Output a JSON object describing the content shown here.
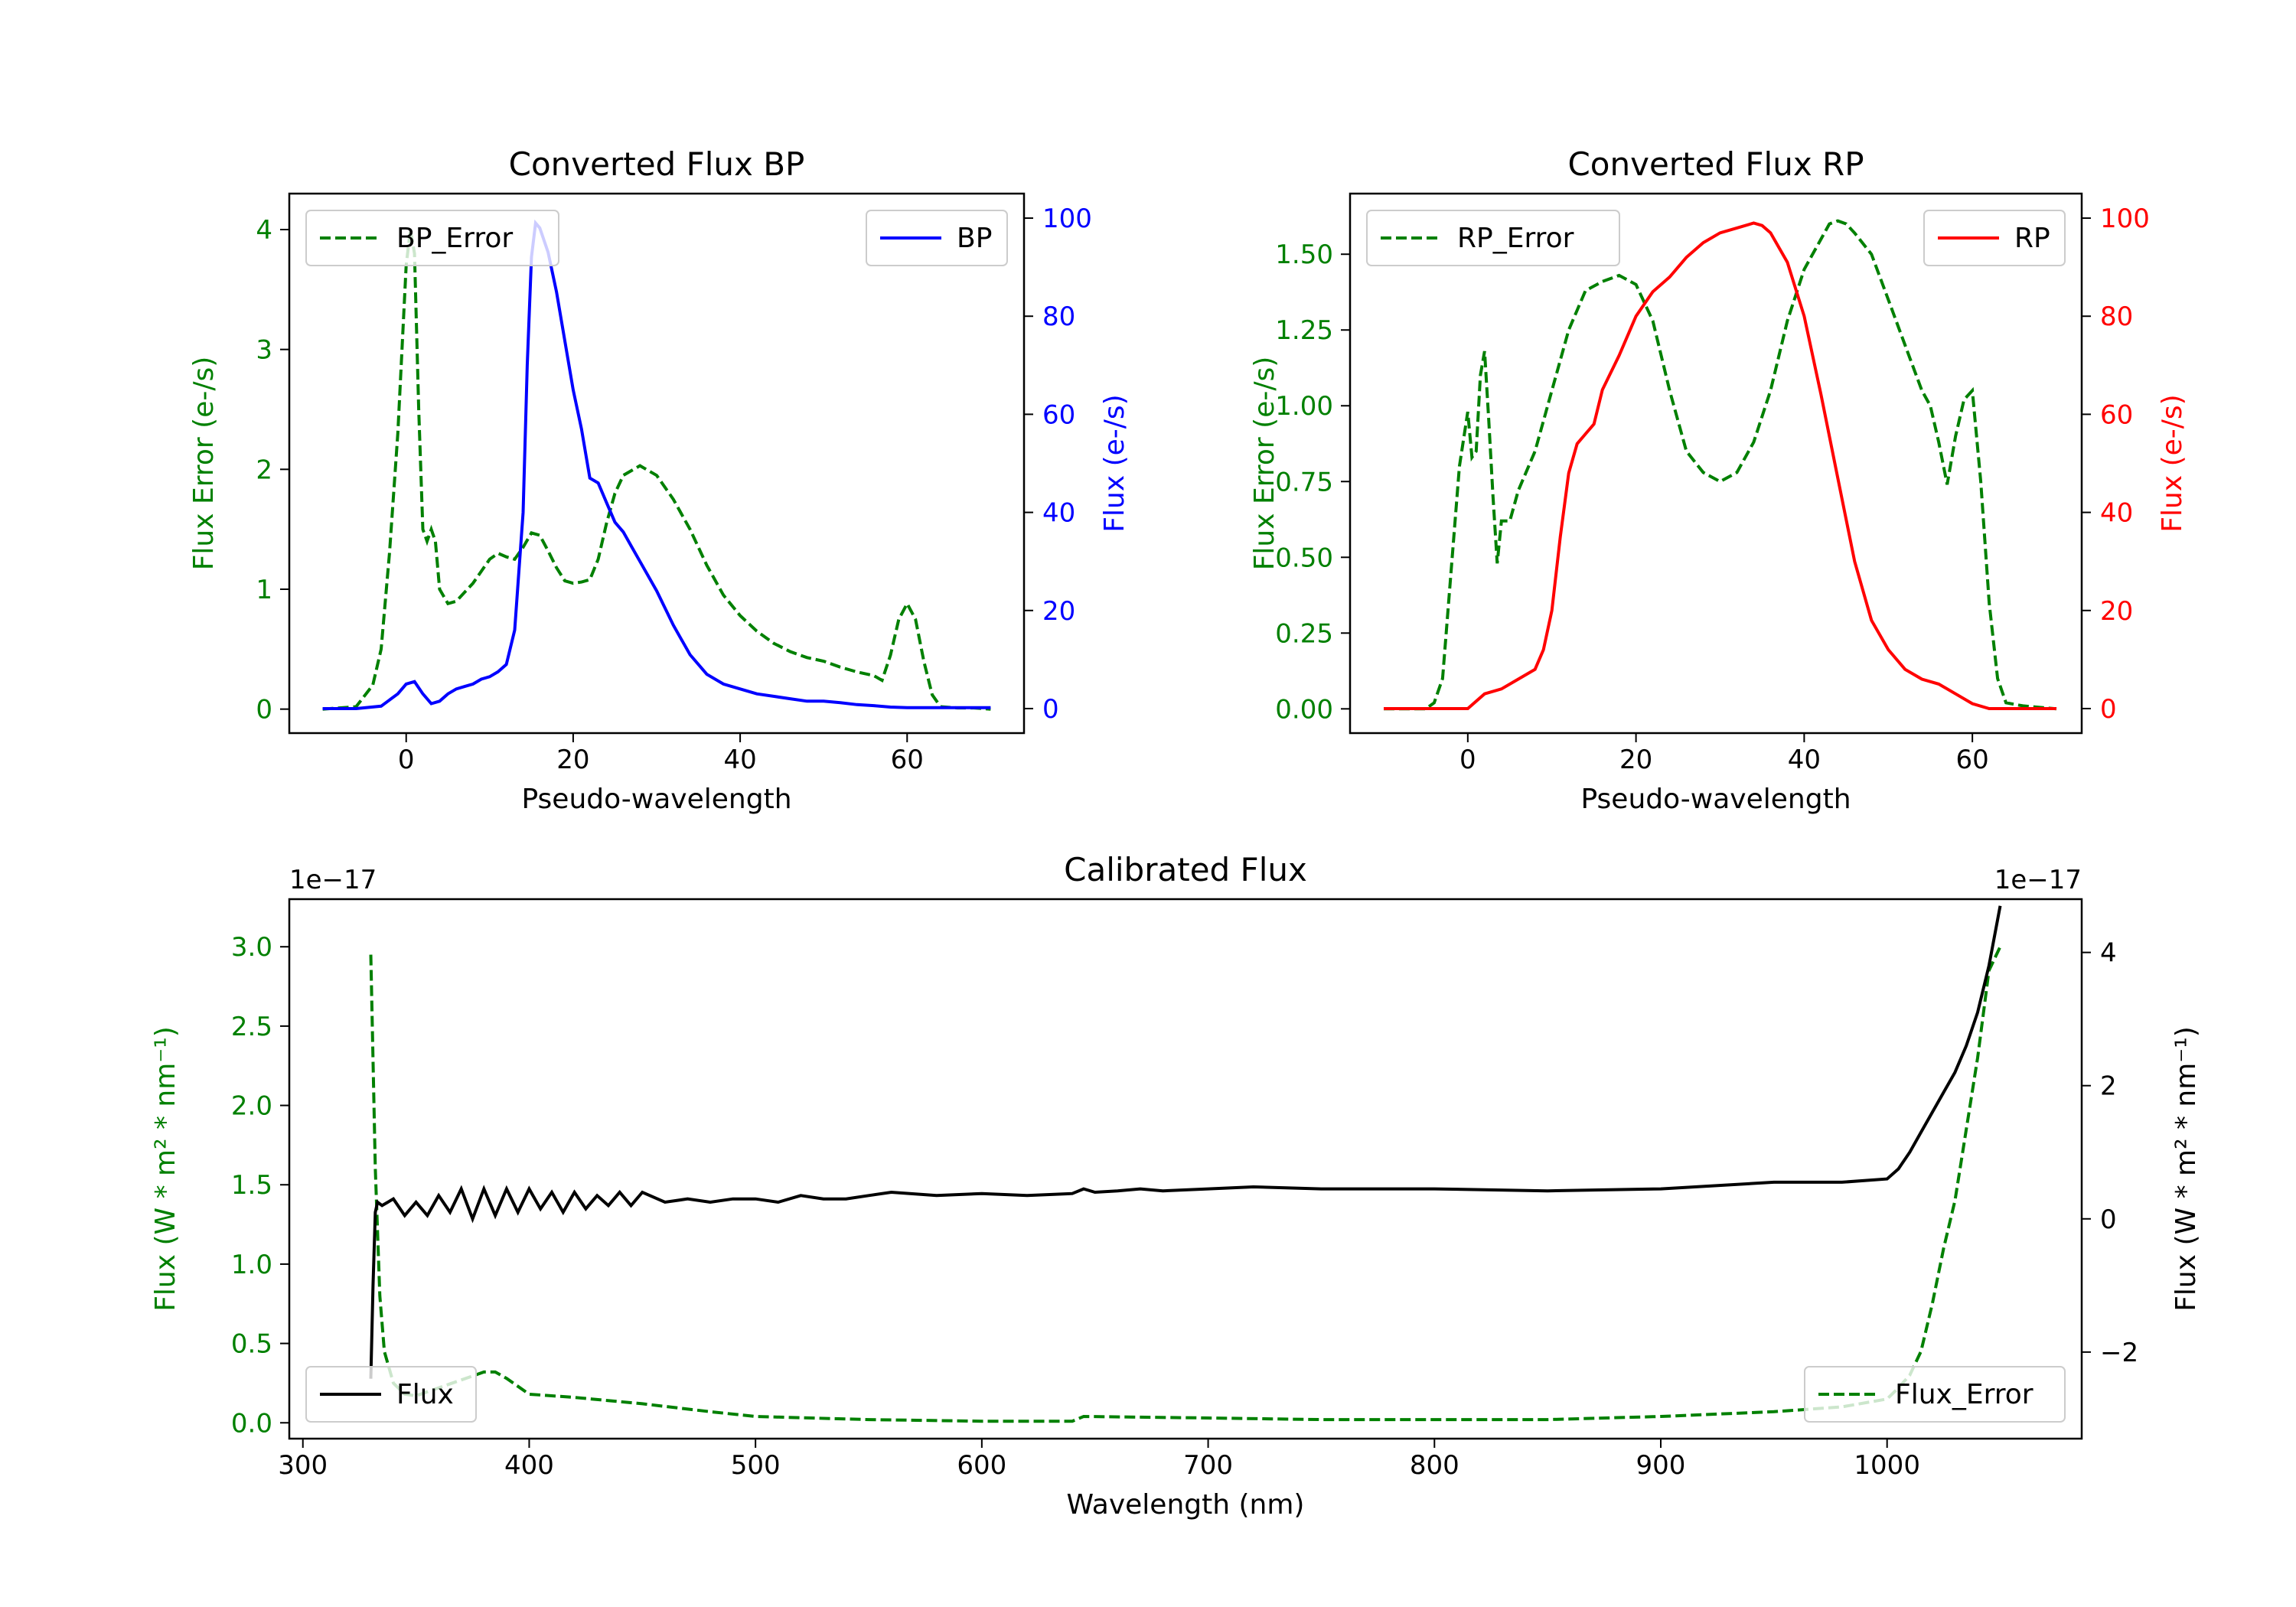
{
  "colors": {
    "error": "#008000",
    "bp": "#0000ff",
    "rp": "#ff0000",
    "flux": "#000000",
    "axis": "#000000"
  },
  "chart_data": [
    {
      "id": "bp",
      "type": "line",
      "title": "Converted Flux BP",
      "xlabel": "Pseudo-wavelength",
      "ylabel_left": "Flux Error (e-/s)",
      "ylabel_right": "Flux (e-/s)",
      "xlim": [
        -14,
        74
      ],
      "ylim_left": [
        -0.2,
        4.3
      ],
      "ylim_right": [
        -5,
        105
      ],
      "xticks": [
        0,
        20,
        40,
        60
      ],
      "yticks_left": [
        0,
        1,
        2,
        3,
        4
      ],
      "yticks_right": [
        0,
        20,
        40,
        60,
        80,
        100
      ],
      "legend_left": "BP_Error",
      "legend_right": "BP",
      "series_error": {
        "name": "BP_Error",
        "x": [
          -10,
          -6,
          -4,
          -3,
          -2,
          -1,
          0,
          0.5,
          1,
          1.5,
          2,
          2.5,
          3,
          3.5,
          4,
          5,
          6,
          8,
          10,
          11,
          12,
          13,
          14,
          15,
          16,
          17,
          18,
          19,
          20,
          21,
          22,
          23,
          24,
          25,
          26,
          28,
          30,
          32,
          34,
          36,
          38,
          40,
          42,
          44,
          46,
          48,
          50,
          52,
          54,
          56,
          57,
          58,
          59,
          60,
          61,
          62,
          63,
          64,
          66,
          68,
          70
        ],
        "y": [
          0,
          0.02,
          0.2,
          0.5,
          1.3,
          2.3,
          3.7,
          4.0,
          3.8,
          2.5,
          1.5,
          1.4,
          1.5,
          1.4,
          1.0,
          0.88,
          0.9,
          1.05,
          1.25,
          1.3,
          1.27,
          1.25,
          1.35,
          1.47,
          1.45,
          1.32,
          1.18,
          1.07,
          1.05,
          1.06,
          1.08,
          1.25,
          1.55,
          1.8,
          1.95,
          2.03,
          1.95,
          1.75,
          1.5,
          1.2,
          0.95,
          0.78,
          0.65,
          0.55,
          0.48,
          0.43,
          0.4,
          0.35,
          0.31,
          0.28,
          0.24,
          0.45,
          0.75,
          0.88,
          0.75,
          0.4,
          0.12,
          0.02,
          0.01,
          0.01,
          0
        ]
      },
      "series_flux": {
        "name": "BP",
        "x": [
          -10,
          -6,
          -3,
          -1,
          0,
          1,
          2,
          3,
          4,
          5,
          6,
          7,
          8,
          9,
          10,
          11,
          12,
          13,
          14,
          14.5,
          15,
          15.5,
          16,
          17,
          18,
          19,
          20,
          21,
          22,
          23,
          24,
          25,
          26,
          27,
          28,
          29,
          30,
          32,
          34,
          36,
          38,
          40,
          42,
          44,
          46,
          48,
          50,
          52,
          54,
          56,
          58,
          60,
          62,
          65,
          70
        ],
        "y": [
          0,
          0,
          0.5,
          3,
          5,
          5.5,
          3,
          1,
          1.5,
          3,
          4,
          4.5,
          5,
          6,
          6.5,
          7.5,
          9,
          16,
          40,
          70,
          92,
          99,
          98,
          93,
          85,
          75,
          65,
          57,
          47,
          46,
          42,
          38,
          36,
          33,
          30,
          27,
          24,
          17,
          11,
          7,
          5,
          4,
          3,
          2.5,
          2,
          1.5,
          1.5,
          1.2,
          0.8,
          0.6,
          0.3,
          0.2,
          0.2,
          0.2,
          0.2
        ]
      }
    },
    {
      "id": "rp",
      "type": "line",
      "title": "Converted Flux RP",
      "xlabel": "Pseudo-wavelength",
      "ylabel_left": "Flux Error (e-/s)",
      "ylabel_right": "Flux (e-/s)",
      "xlim": [
        -14,
        73
      ],
      "ylim_left": [
        -0.08,
        1.7
      ],
      "ylim_right": [
        -5,
        105
      ],
      "xticks": [
        0,
        20,
        40,
        60
      ],
      "yticks_left": [
        "0.00",
        "0.25",
        "0.50",
        "0.75",
        "1.00",
        "1.25",
        "1.50"
      ],
      "yticks_right": [
        0,
        20,
        40,
        60,
        80,
        100
      ],
      "legend_left": "RP_Error",
      "legend_right": "RP",
      "series_error": {
        "name": "RP_Error",
        "x": [
          -10,
          -5,
          -4,
          -3,
          -2,
          -1,
          0,
          0.5,
          1,
          1.5,
          2,
          2.5,
          3,
          3.5,
          4,
          5,
          6,
          8,
          10,
          12,
          14,
          16,
          18,
          20,
          22,
          24,
          26,
          28,
          30,
          32,
          34,
          36,
          38,
          40,
          42,
          43,
          44,
          45,
          46,
          48,
          50,
          52,
          54,
          55,
          56,
          57,
          58,
          59,
          60,
          61,
          62,
          63,
          64,
          66,
          70
        ],
        "y": [
          0,
          0,
          0.02,
          0.1,
          0.45,
          0.8,
          0.98,
          0.83,
          0.85,
          1.1,
          1.18,
          0.95,
          0.7,
          0.48,
          0.62,
          0.62,
          0.72,
          0.85,
          1.05,
          1.25,
          1.38,
          1.41,
          1.43,
          1.4,
          1.28,
          1.05,
          0.85,
          0.78,
          0.75,
          0.78,
          0.88,
          1.05,
          1.28,
          1.45,
          1.55,
          1.6,
          1.61,
          1.6,
          1.57,
          1.5,
          1.35,
          1.2,
          1.05,
          1.0,
          0.88,
          0.74,
          0.9,
          1.02,
          1.05,
          0.75,
          0.35,
          0.1,
          0.02,
          0.01,
          0
        ]
      },
      "series_flux": {
        "name": "RP",
        "x": [
          -10,
          -4,
          -2,
          0,
          2,
          4,
          6,
          8,
          9,
          10,
          11,
          12,
          13,
          14,
          15,
          16,
          18,
          20,
          22,
          24,
          26,
          28,
          30,
          32,
          34,
          35,
          36,
          38,
          40,
          42,
          44,
          46,
          48,
          50,
          52,
          54,
          56,
          58,
          60,
          62,
          65,
          70
        ],
        "y": [
          0,
          0,
          0,
          0,
          3,
          4,
          6,
          8,
          12,
          20,
          35,
          48,
          54,
          56,
          58,
          65,
          72,
          80,
          85,
          88,
          92,
          95,
          97,
          98,
          99,
          98.5,
          97,
          91,
          80,
          64,
          47,
          30,
          18,
          12,
          8,
          6,
          5,
          3,
          1,
          0,
          0,
          0
        ]
      }
    },
    {
      "id": "calibrated",
      "type": "line",
      "title": "Calibrated Flux",
      "xlabel": "Wavelength (nm)",
      "ylabel_left": "Flux (W * m² * nm⁻¹)",
      "ylabel_right": "Flux (W * m² * nm⁻¹)",
      "offset_left": "1e−17",
      "offset_right": "1e−17",
      "xlim": [
        294,
        1086
      ],
      "ylim_left": [
        -0.1,
        3.3
      ],
      "ylim_right": [
        -3.3,
        4.8
      ],
      "xticks": [
        300,
        400,
        500,
        600,
        700,
        800,
        900,
        1000
      ],
      "yticks_left": [
        "0.0",
        "0.5",
        "1.0",
        "1.5",
        "2.0",
        "2.5",
        "3.0"
      ],
      "yticks_right": [
        "−2",
        "0",
        "2",
        "4"
      ],
      "legend_left": "Flux",
      "legend_right": "Flux_Error",
      "series_error": {
        "name": "Flux_Error",
        "x": [
          330,
          332,
          334,
          336,
          340,
          345,
          350,
          360,
          370,
          380,
          385,
          390,
          400,
          420,
          450,
          480,
          500,
          550,
          600,
          640,
          645,
          700,
          750,
          800,
          850,
          900,
          950,
          980,
          1000,
          1005,
          1010,
          1015,
          1020,
          1025,
          1030,
          1035,
          1040,
          1045,
          1050
        ],
        "y": [
          2.95,
          1.6,
          0.8,
          0.45,
          0.25,
          0.18,
          0.17,
          0.22,
          0.27,
          0.32,
          0.32,
          0.28,
          0.18,
          0.16,
          0.12,
          0.07,
          0.04,
          0.02,
          0.01,
          0.01,
          0.04,
          0.03,
          0.02,
          0.02,
          0.02,
          0.04,
          0.07,
          0.1,
          0.15,
          0.22,
          0.3,
          0.45,
          0.75,
          1.1,
          1.4,
          1.85,
          2.3,
          2.85,
          3.0
        ]
      },
      "series_flux": {
        "name": "Flux",
        "x": [
          330,
          331,
          332,
          333,
          335,
          340,
          345,
          350,
          355,
          360,
          365,
          370,
          375,
          380,
          385,
          390,
          395,
          400,
          405,
          410,
          415,
          420,
          425,
          430,
          435,
          440,
          445,
          450,
          460,
          470,
          480,
          490,
          500,
          510,
          520,
          530,
          540,
          550,
          560,
          580,
          600,
          620,
          640,
          645,
          650,
          660,
          670,
          680,
          700,
          720,
          750,
          800,
          850,
          900,
          950,
          980,
          1000,
          1005,
          1010,
          1015,
          1020,
          1025,
          1030,
          1035,
          1040,
          1045,
          1050
        ],
        "y": [
          -2.4,
          -1.0,
          0.1,
          0.25,
          0.2,
          0.3,
          0.05,
          0.25,
          0.05,
          0.35,
          0.1,
          0.45,
          0.0,
          0.45,
          0.05,
          0.45,
          0.1,
          0.45,
          0.15,
          0.4,
          0.1,
          0.4,
          0.15,
          0.35,
          0.2,
          0.4,
          0.2,
          0.4,
          0.25,
          0.3,
          0.25,
          0.3,
          0.3,
          0.25,
          0.35,
          0.3,
          0.3,
          0.35,
          0.4,
          0.35,
          0.38,
          0.35,
          0.38,
          0.45,
          0.4,
          0.42,
          0.45,
          0.42,
          0.45,
          0.48,
          0.45,
          0.45,
          0.42,
          0.45,
          0.55,
          0.55,
          0.6,
          0.75,
          1.0,
          1.3,
          1.6,
          1.9,
          2.2,
          2.6,
          3.1,
          3.8,
          4.7
        ]
      }
    }
  ]
}
